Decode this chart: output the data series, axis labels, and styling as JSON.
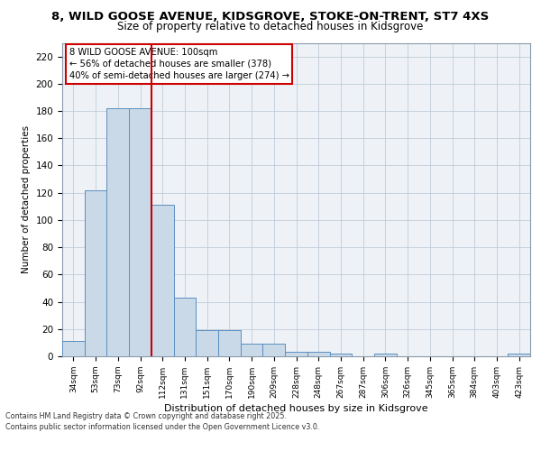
{
  "title_line1": "8, WILD GOOSE AVENUE, KIDSGROVE, STOKE-ON-TRENT, ST7 4XS",
  "title_line2": "Size of property relative to detached houses in Kidsgrove",
  "xlabel": "Distribution of detached houses by size in Kidsgrove",
  "ylabel": "Number of detached properties",
  "categories": [
    "34sqm",
    "53sqm",
    "73sqm",
    "92sqm",
    "112sqm",
    "131sqm",
    "151sqm",
    "170sqm",
    "190sqm",
    "209sqm",
    "228sqm",
    "248sqm",
    "267sqm",
    "287sqm",
    "306sqm",
    "326sqm",
    "345sqm",
    "365sqm",
    "384sqm",
    "403sqm",
    "423sqm"
  ],
  "values": [
    11,
    122,
    182,
    182,
    111,
    43,
    19,
    19,
    9,
    9,
    3,
    3,
    2,
    0,
    2,
    0,
    0,
    0,
    0,
    0,
    2
  ],
  "bar_color": "#c9d9e8",
  "bar_edge_color": "#5a8fc0",
  "vline_x": 3.5,
  "vline_color": "#cc0000",
  "annotation_box_text": "8 WILD GOOSE AVENUE: 100sqm\n← 56% of detached houses are smaller (378)\n40% of semi-detached houses are larger (274) →",
  "annotation_box_color": "#cc0000",
  "ylim": [
    0,
    230
  ],
  "yticks": [
    0,
    20,
    40,
    60,
    80,
    100,
    120,
    140,
    160,
    180,
    200,
    220
  ],
  "footer_line1": "Contains HM Land Registry data © Crown copyright and database right 2025.",
  "footer_line2": "Contains public sector information licensed under the Open Government Licence v3.0.",
  "bg_color": "#eef2f7",
  "grid_color": "#c0ccd8"
}
